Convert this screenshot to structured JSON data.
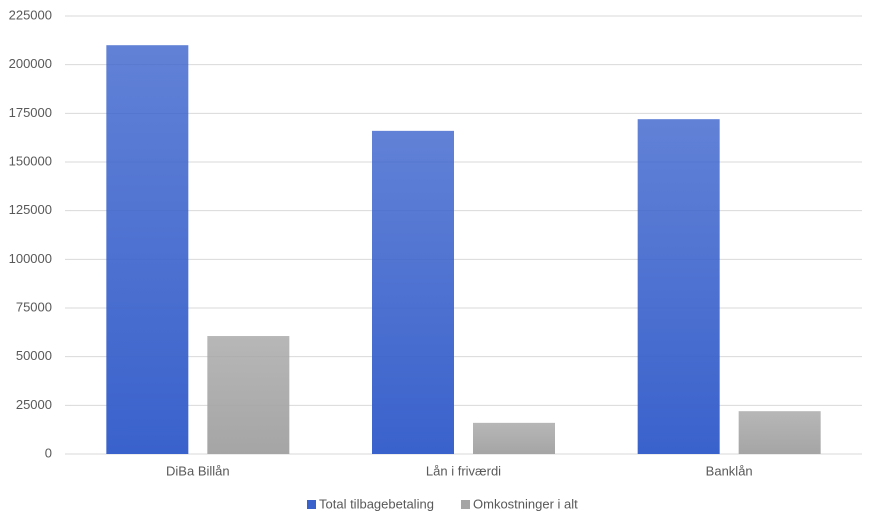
{
  "chart_data": {
    "type": "bar",
    "categories": [
      "DiBa Billån",
      "Lån i friværdi",
      "Banklån"
    ],
    "series": [
      {
        "name": "Total tilbagebetaling",
        "color": "#3a62cc",
        "values": [
          210000,
          166000,
          172000
        ]
      },
      {
        "name": "Omkostninger i alt",
        "color": "#a5a5a5",
        "values": [
          60600,
          16000,
          22000
        ]
      }
    ],
    "ylim": [
      0,
      225000
    ],
    "yticks": [
      0,
      25000,
      50000,
      75000,
      100000,
      125000,
      150000,
      175000,
      200000,
      225000
    ],
    "grid": true,
    "legend": "bottom"
  }
}
